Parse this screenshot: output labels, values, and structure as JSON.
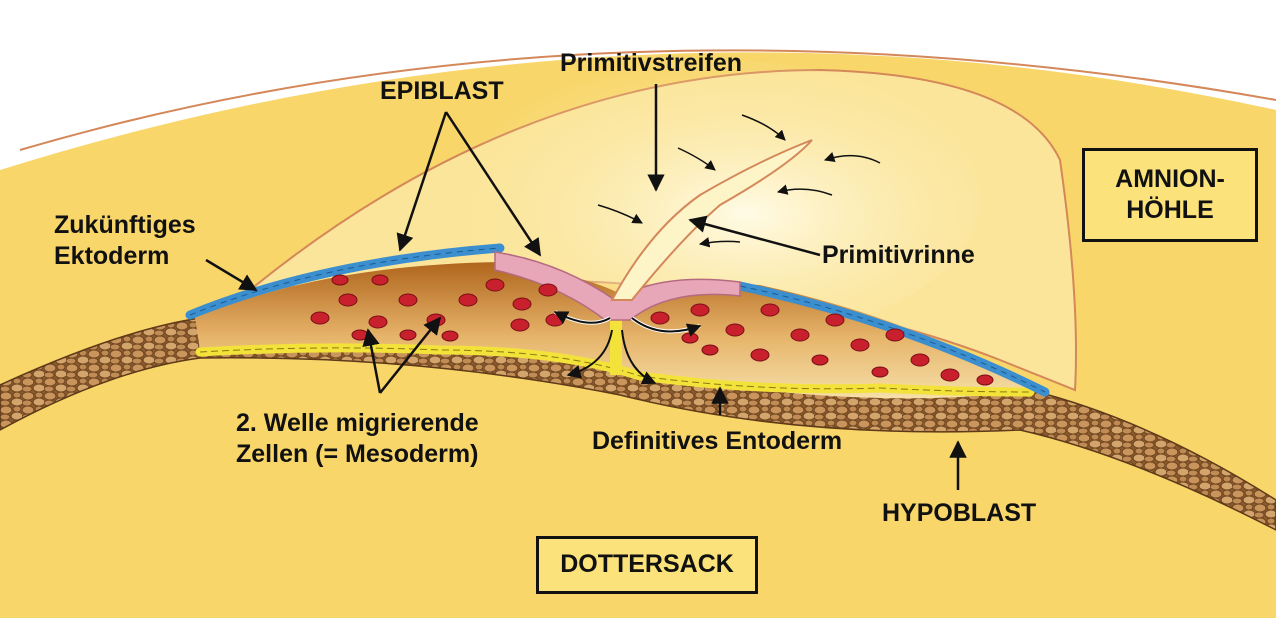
{
  "labels": {
    "epiblast": "EPIBLAST",
    "primitivstreifen": "Primitivstreifen",
    "amnion_line1": "AMNION-",
    "amnion_line2": "HÖHLE",
    "ektoderm_line1": "Zukünftiges",
    "ektoderm_line2": "Ektoderm",
    "primitivrinne": "Primitivrinne",
    "mesoderm_line1": "2. Welle migrierende",
    "mesoderm_line2": "Zellen (= Mesoderm)",
    "entoderm": "Definitives Entoderm",
    "hypoblast": "HYPOBLAST",
    "dottersack": "DOTTERSACK"
  },
  "colors": {
    "background_yolk": "#f8d66a",
    "amnion_fill": "#fbe59a",
    "streak_glow": "#fdf4c8",
    "ectoderm_blue": "#3c8fcf",
    "epiblast_pink": "#e8a7b8",
    "mesoderm_red": "#c8202c",
    "entoderm_yellow": "#f3e23a",
    "hypoblast_brown": "#b88552",
    "outline": "#111111"
  }
}
